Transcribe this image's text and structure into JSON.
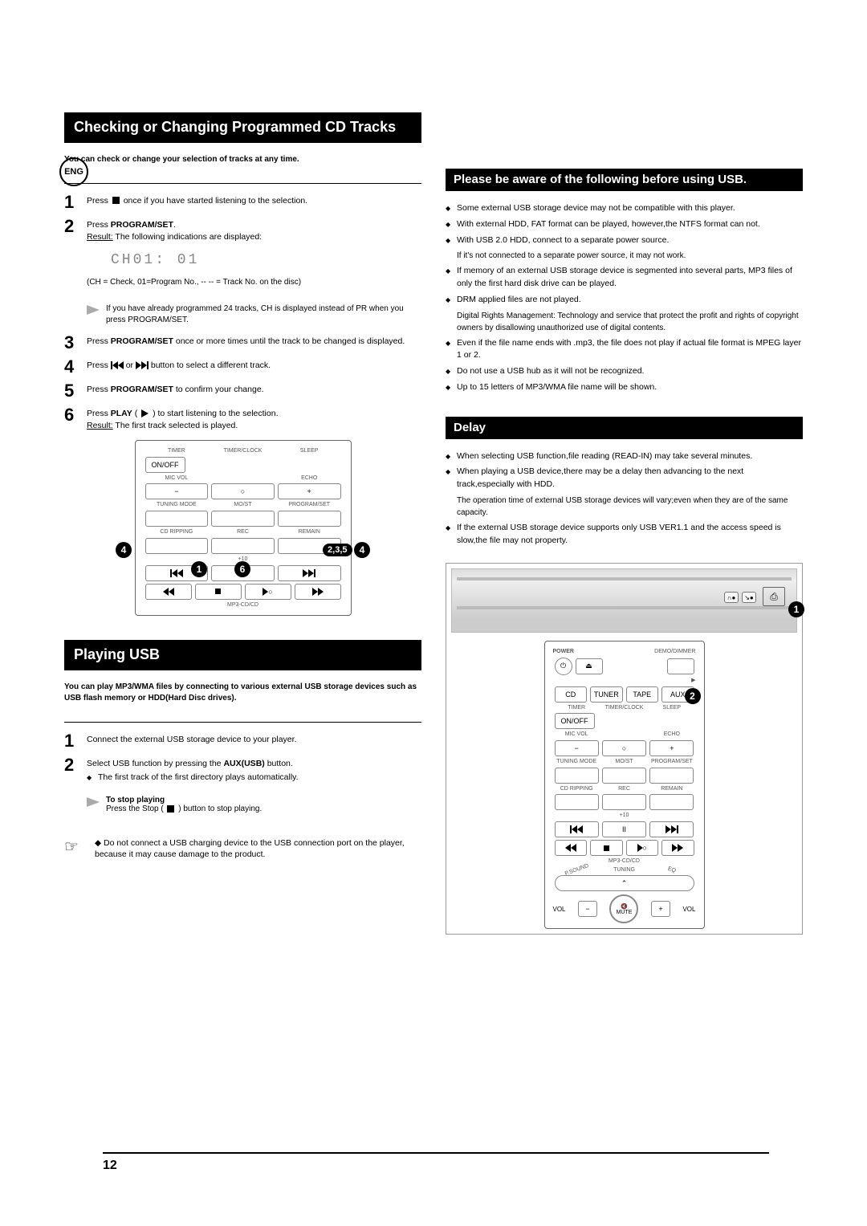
{
  "badge": {
    "lang": "ENG"
  },
  "page_number": "12",
  "left": {
    "header1": "Checking or Changing Programmed CD Tracks",
    "intro1": "You can check or change your selection of tracks at any time.",
    "steps1": {
      "1": {
        "pre": "Press ",
        "post": " once if you have started listening to the selection."
      },
      "2": {
        "line1_pre": "Press ",
        "line1_bold": "PROGRAM/SET",
        "line1_post": ".",
        "line2_label": "Result:",
        "line2_text": " The following indications are displayed:",
        "display": "CH01: 01",
        "note": "(CH = Check, 01=Program No., -- -- = Track No. on the disc)",
        "tip": "If you have already programmed 24 tracks, CH is displayed instead of PR when you press PROGRAM/SET."
      },
      "3": {
        "pre": "Press ",
        "bold": "PROGRAM/SET",
        "post": " once or more times until the track to be changed is displayed."
      },
      "4": {
        "pre": "Press  ",
        "mid": " or ",
        "post": "  button to select a different track."
      },
      "5": {
        "pre": "Press ",
        "bold": "PROGRAM/SET",
        "post": " to confirm your change."
      },
      "6": {
        "pre": "Press ",
        "bold": "PLAY",
        "paren_pre": " ( ",
        "paren_post": " ) to start listening to the selection.",
        "result_label": "Result:",
        "result_text": " The first track selected is played."
      }
    },
    "remote": {
      "row1": [
        "TIMER",
        "TIMER/CLOCK",
        "SLEEP"
      ],
      "row2": "ON/OFF",
      "row3_l": "MIC VOL",
      "row3_r": "ECHO",
      "row4_minus": "−",
      "row4_dot": "○",
      "row4_plus": "+",
      "row5": [
        "TUNING MODE",
        "MO/ST",
        "PROGRAM/SET"
      ],
      "row6": [
        "CD RIPPING",
        "REC",
        "REMAIN"
      ],
      "row7_label": "+10",
      "row8_label": "MP3-CD/CD",
      "callout_235": "2,3,5",
      "callout_4l": "4",
      "callout_1": "1",
      "callout_6": "6",
      "callout_4r": "4"
    },
    "header2": "Playing USB",
    "intro2": "You can play MP3/WMA files by connecting to various external USB storage devices such as USB flash memory or HDD(Hard Disc drives).",
    "steps2": {
      "1": "Connect the external USB storage device to your player.",
      "2": {
        "line1_pre": "Select USB function by pressing the ",
        "line1_bold": "AUX(USB)",
        "line1_post": " button.",
        "bullet": "The first track of the first directory plays automatically."
      }
    },
    "stop_title": "To stop playing",
    "stop_text_pre": "Press the Stop ( ",
    "stop_text_post": " ) button to stop playing.",
    "warning": "Do not connect a USB charging device to the USB connection port on the player, because it may cause damage to the product."
  },
  "right": {
    "header1": "Please be aware of the following before using USB.",
    "usb_notes": [
      {
        "b": [
          "Some external USB storage device may not be compatible with this player."
        ]
      },
      {
        "b": [
          "With external HDD, FAT format can be played, however,the NTFS format can not."
        ]
      },
      {
        "b": [
          "With USB 2.0 HDD, connect to a separate power source."
        ],
        "s": [
          "If it's not connected to a separate power source, it may not work."
        ]
      },
      {
        "b": [
          "If memory of an external USB storage device is segmented into several parts, MP3 files of only the first hard disk drive can be played."
        ]
      },
      {
        "b": [
          "DRM applied files are not played."
        ],
        "s": [
          "Digital Rights Management: Technology and service that protect the profit and rights of copyright owners by disallowing unauthorized use of digital contents."
        ]
      },
      {
        "b": [
          "Even if the file name ends with .mp3, the file does not play if actual file format is MPEG layer 1 or 2."
        ]
      },
      {
        "b": [
          "Do not use a USB hub as it will not be recognized."
        ]
      },
      {
        "b": [
          "Up to 15 letters of MP3/WMA file name will be shown."
        ]
      }
    ],
    "header2": "Delay",
    "delay_notes": [
      {
        "b": [
          "When selecting USB function,file reading (READ-IN) may take several minutes."
        ]
      },
      {
        "b": [
          "When playing a USB device,there may be a delay then advancing to the next track,especially with HDD."
        ],
        "s": [
          "The operation time of external USB storage devices will vary;even when they are of the same capacity."
        ]
      },
      {
        "b": [
          "If the external USB storage device supports only USB VER1.1 and the access speed is slow,the file may not property."
        ]
      }
    ],
    "device": {
      "callout_1": "1",
      "callout_2": "2",
      "remote_power": "POWER",
      "remote_demo": "DEMO/DIMMER",
      "remote_func": [
        "CD",
        "TUNER",
        "TAPE",
        "AUX"
      ],
      "remote_timer": [
        "TIMER",
        "TIMER/CLOCK",
        "SLEEP"
      ],
      "remote_onoff": "ON/OFF",
      "remote_mic": "MIC VOL",
      "remote_echo": "ECHO",
      "remote_tuning": [
        "TUNING MODE",
        "MO/ST",
        "PROGRAM/SET"
      ],
      "remote_row6": [
        "CD RIPPING",
        "REC",
        "REMAIN"
      ],
      "remote_plus10": "+10",
      "remote_mp3": "MP3-CD/CD",
      "remote_tun2": "TUNING",
      "remote_psound": "P.SOUND",
      "remote_eq": "EQ",
      "remote_vol": "VOL",
      "remote_mute": "MUTE"
    }
  }
}
